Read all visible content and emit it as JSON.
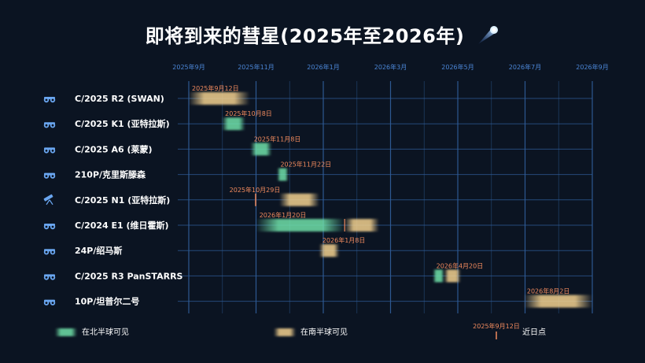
{
  "title": "即将到来的彗星(2025年至2026年)",
  "title_icon": "comet-icon",
  "colors": {
    "background": "#0b1422",
    "north": "#6fe0a8",
    "south": "#f2d08e",
    "perihelion": "#f08a5d",
    "axis_label": "#4b86d6",
    "grid": "#2f5c98",
    "icon": "#6aa6f0"
  },
  "chart_data": {
    "type": "gantt",
    "x_ticks": [
      "2025年9月",
      "2025年11月",
      "2026年1月",
      "2026年3月",
      "2026年5月",
      "2026年7月",
      "2026年9月"
    ],
    "xlim": [
      "2025-09-01",
      "2026-09-01"
    ],
    "rows": [
      {
        "name": "C/2025 R2 (SWAN)",
        "icon": "binoculars-icon",
        "perihelion": "2025年9月12日",
        "segments": [
          {
            "hemisphere": "south",
            "start": "2025-09-01",
            "end": "2025-10-26"
          }
        ]
      },
      {
        "name": "C/2025 K1 (亚特拉斯)",
        "icon": "binoculars-icon",
        "perihelion": "2025年10月8日",
        "segments": [
          {
            "hemisphere": "north",
            "start": "2025-10-01",
            "end": "2025-10-22"
          }
        ]
      },
      {
        "name": "C/2025 A6 (莱蒙)",
        "icon": "binoculars-icon",
        "perihelion": "2025年11月8日",
        "segments": [
          {
            "hemisphere": "north",
            "start": "2025-10-27",
            "end": "2025-11-15"
          }
        ]
      },
      {
        "name": "210P/克里斯滕森",
        "icon": "binoculars-icon",
        "perihelion": "2025年11月22日",
        "segments": [
          {
            "hemisphere": "north",
            "start": "2025-11-20",
            "end": "2025-11-30"
          }
        ]
      },
      {
        "name": "C/2025 N1 (亚特拉斯)",
        "icon": "telescope-icon",
        "perihelion": "2025年10月29日",
        "segments": [
          {
            "hemisphere": "south",
            "start": "2025-11-22",
            "end": "2025-12-28"
          }
        ]
      },
      {
        "name": "C/2024 E1 (维日霍斯)",
        "icon": "binoculars-icon",
        "perihelion": "2026年1月20日",
        "segments": [
          {
            "hemisphere": "north",
            "start": "2025-11-01",
            "end": "2026-01-20"
          },
          {
            "hemisphere": "south",
            "start": "2026-01-20",
            "end": "2026-02-20"
          }
        ]
      },
      {
        "name": "24P/绍马斯",
        "icon": "binoculars-icon",
        "perihelion": "2026年1月8日",
        "segments": [
          {
            "hemisphere": "south",
            "start": "2025-12-28",
            "end": "2026-01-15"
          }
        ]
      },
      {
        "name": "C/2025 R3 PanSTARRS",
        "icon": "binoculars-icon",
        "perihelion": "2026年4月20日",
        "segments": [
          {
            "hemisphere": "north",
            "start": "2026-04-10",
            "end": "2026-04-20"
          },
          {
            "hemisphere": "south",
            "start": "2026-04-20",
            "end": "2026-05-05"
          }
        ]
      },
      {
        "name": "10P/坦普尔二号",
        "icon": "binoculars-icon",
        "perihelion": "2026年8月2日",
        "segments": [
          {
            "hemisphere": "south",
            "start": "2026-07-01",
            "end": "2026-09-01"
          }
        ]
      }
    ]
  },
  "legend": {
    "north_label": "在北半球可见",
    "south_label": "在南半球可见",
    "perihelion_date": "2025年9月12日",
    "perihelion_label": "近日点"
  }
}
